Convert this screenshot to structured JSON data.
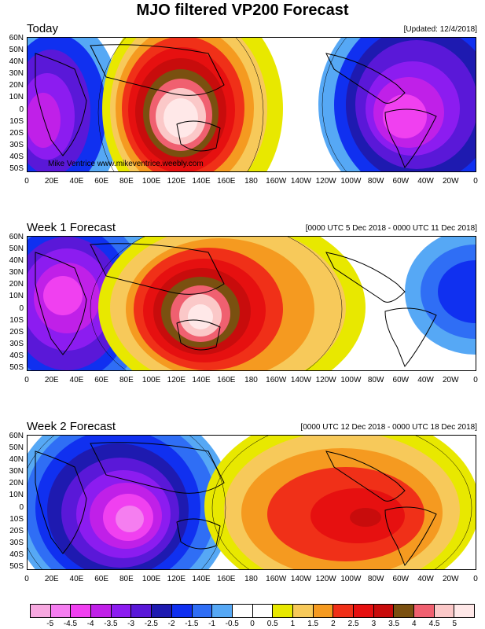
{
  "title": "MJO filtered VP200 Forecast",
  "panels": [
    {
      "label": "Today",
      "info": "[Updated: 12/4/2018]",
      "watermark": "Mike Ventrice www.mikeventrice.weebly.com"
    },
    {
      "label": "Week 1 Forecast",
      "info": "[0000 UTC 5 Dec 2018 - 0000 UTC 11 Dec 2018]",
      "watermark": ""
    },
    {
      "label": "Week 2 Forecast",
      "info": "[0000 UTC 12 Dec 2018 - 0000 UTC 18 Dec 2018]",
      "watermark": ""
    }
  ],
  "lat_labels": [
    "60N",
    "50N",
    "40N",
    "30N",
    "20N",
    "10N",
    "0",
    "10S",
    "20S",
    "30S",
    "40S",
    "50S"
  ],
  "lon_labels": [
    "0",
    "20E",
    "40E",
    "60E",
    "80E",
    "100E",
    "120E",
    "140E",
    "160E",
    "180",
    "160W",
    "140W",
    "120W",
    "100W",
    "80W",
    "60W",
    "40W",
    "20W",
    "0"
  ],
  "colorbar": {
    "labels": [
      "-5",
      "-4.5",
      "-4",
      "-3.5",
      "-3",
      "-2.5",
      "-2",
      "-1.5",
      "-1",
      "-0.5",
      "0",
      "0.5",
      "1",
      "1.5",
      "2",
      "2.5",
      "3",
      "3.5",
      "4",
      "4.5",
      "5"
    ],
    "colors": [
      "#f7a8e0",
      "#f57ef0",
      "#f040f0",
      "#c020e8",
      "#8c1cf0",
      "#5a18d8",
      "#1e1ab0",
      "#1030f0",
      "#2f6ef5",
      "#56a8f5",
      "#ffffff",
      "#ffffff",
      "#e8e800",
      "#f7c95a",
      "#f59a20",
      "#f03018",
      "#e61010",
      "#c80c0c",
      "#7a5010",
      "#f06070",
      "#fbc8c8",
      "#ffe8e8"
    ]
  },
  "chart_data": {
    "type": "heatmap",
    "field": "MJO filtered VP200",
    "units_levels": [
      -5,
      -4.5,
      -4,
      -3.5,
      -3,
      -2.5,
      -2,
      -1.5,
      -1,
      -0.5,
      0,
      0.5,
      1,
      1.5,
      2,
      2.5,
      3,
      3.5,
      4,
      4.5,
      5
    ],
    "lat_range": [
      "50S",
      "60N"
    ],
    "lon_range": [
      "0",
      "0"
    ],
    "panels": [
      {
        "name": "Today",
        "centers": [
          {
            "lon": 125,
            "lat": 5,
            "value": 5
          },
          {
            "lon": 310,
            "lat": 0,
            "value": -4.5
          },
          {
            "lon": 20,
            "lat": 10,
            "value": -3.5
          }
        ]
      },
      {
        "name": "Week 1 Forecast",
        "centers": [
          {
            "lon": 140,
            "lat": 5,
            "value": 5
          },
          {
            "lon": 30,
            "lat": 10,
            "value": -4.5
          },
          {
            "lon": 330,
            "lat": 10,
            "value": -3
          }
        ]
      },
      {
        "name": "Week 2 Forecast",
        "centers": [
          {
            "lon": 85,
            "lat": 0,
            "value": -5
          },
          {
            "lon": 260,
            "lat": 0,
            "value": 3
          }
        ]
      }
    ]
  }
}
